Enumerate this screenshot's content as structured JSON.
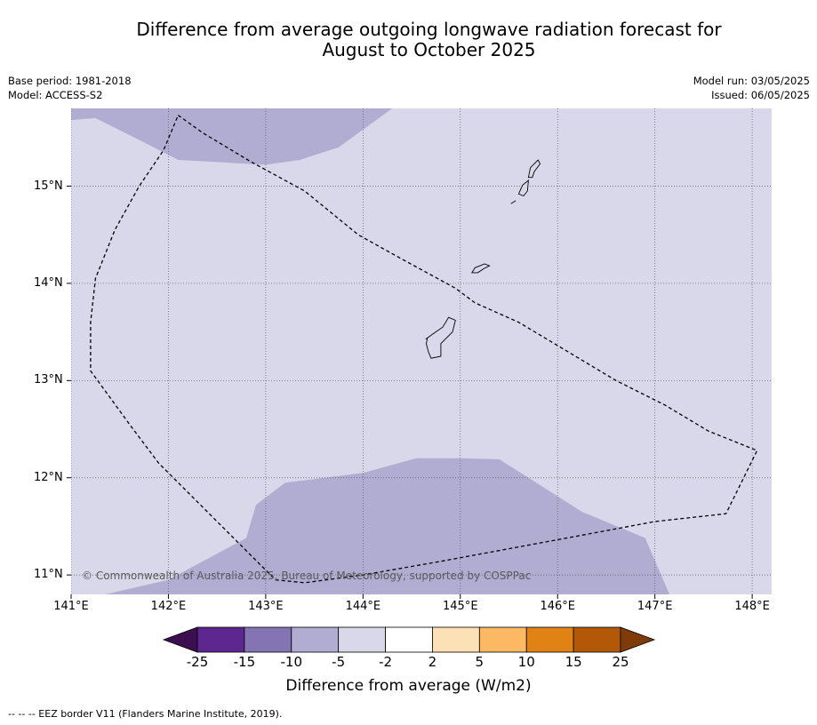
{
  "title": {
    "line1": "Difference from average outgoing longwave radiation forecast for",
    "line2": "August to October 2025"
  },
  "meta": {
    "base_period": "Base period: 1981-2018",
    "model": "Model: ACCESS-S2",
    "model_run": "Model run: 03/05/2025",
    "issued": "Issued: 06/05/2025"
  },
  "map": {
    "lon_range": [
      141.0,
      148.2
    ],
    "lat_range": [
      10.8,
      15.8
    ],
    "background_color": "#d8d8ea",
    "anomaly_color": "#b1acd2",
    "lat_labels": [
      "15°N",
      "14°N",
      "13°N",
      "12°N",
      "11°N"
    ],
    "lat_values": [
      15,
      14,
      13,
      12,
      11
    ],
    "lon_labels": [
      "141°E",
      "142°E",
      "143°E",
      "144°E",
      "145°E",
      "146°E",
      "147°E",
      "148°E"
    ],
    "lon_values": [
      141,
      142,
      143,
      144,
      145,
      146,
      147,
      148
    ],
    "gridlines": "dotted",
    "copyright": "© Commonwealth of Australia 2025, Bureau of Meteorology, supported by COSPPac",
    "anomaly_regions": [
      [
        [
          141.0,
          15.68
        ],
        [
          141.25,
          15.7
        ],
        [
          141.75,
          15.45
        ],
        [
          142.1,
          15.27
        ],
        [
          143.0,
          15.22
        ],
        [
          143.35,
          15.27
        ],
        [
          143.75,
          15.4
        ],
        [
          144.3,
          15.8
        ],
        [
          141.0,
          15.8
        ]
      ],
      [
        [
          141.35,
          10.8
        ],
        [
          142.0,
          10.95
        ],
        [
          142.8,
          11.38
        ],
        [
          142.9,
          11.72
        ],
        [
          143.2,
          11.95
        ],
        [
          144.0,
          12.05
        ],
        [
          144.55,
          12.2
        ],
        [
          145.0,
          12.2
        ],
        [
          145.4,
          12.19
        ],
        [
          146.25,
          11.65
        ],
        [
          146.9,
          11.38
        ],
        [
          147.15,
          10.8
        ]
      ]
    ],
    "eez_border": [
      [
        142.1,
        15.73
      ],
      [
        142.35,
        15.55
      ],
      [
        142.85,
        15.25
      ],
      [
        143.4,
        14.95
      ],
      [
        143.95,
        14.5
      ],
      [
        144.4,
        14.25
      ],
      [
        144.95,
        13.95
      ],
      [
        145.15,
        13.8
      ],
      [
        145.6,
        13.6
      ],
      [
        146.1,
        13.3
      ],
      [
        146.6,
        13.0
      ],
      [
        147.1,
        12.75
      ],
      [
        147.55,
        12.48
      ],
      [
        148.05,
        12.28
      ],
      [
        147.73,
        11.63
      ],
      [
        147.0,
        11.55
      ],
      [
        146.2,
        11.4
      ],
      [
        145.5,
        11.27
      ],
      [
        144.8,
        11.14
      ],
      [
        144.0,
        11.0
      ],
      [
        143.4,
        10.92
      ],
      [
        143.1,
        10.95
      ],
      [
        142.5,
        11.55
      ],
      [
        141.9,
        12.15
      ],
      [
        141.6,
        12.55
      ],
      [
        141.2,
        13.1
      ],
      [
        141.2,
        13.6
      ],
      [
        141.25,
        14.05
      ],
      [
        141.45,
        14.55
      ],
      [
        141.7,
        15.0
      ],
      [
        141.95,
        15.37
      ],
      [
        142.1,
        15.73
      ]
    ],
    "islands": [
      [
        [
          144.65,
          13.43
        ],
        [
          144.72,
          13.48
        ],
        [
          144.82,
          13.55
        ],
        [
          144.88,
          13.65
        ],
        [
          144.95,
          13.62
        ],
        [
          144.92,
          13.5
        ],
        [
          144.8,
          13.38
        ],
        [
          144.8,
          13.25
        ],
        [
          144.7,
          13.23
        ],
        [
          144.67,
          13.3
        ],
        [
          144.65,
          13.38
        ],
        [
          144.66,
          13.43
        ]
      ],
      [
        [
          145.12,
          14.11
        ],
        [
          145.15,
          14.16
        ],
        [
          145.25,
          14.2
        ],
        [
          145.3,
          14.18
        ],
        [
          145.24,
          14.15
        ],
        [
          145.18,
          14.11
        ]
      ],
      [
        [
          145.6,
          14.92
        ],
        [
          145.64,
          15.01
        ],
        [
          145.7,
          15.06
        ],
        [
          145.69,
          14.95
        ],
        [
          145.65,
          14.9
        ]
      ],
      [
        [
          145.7,
          15.09
        ],
        [
          145.72,
          15.19
        ],
        [
          145.8,
          15.27
        ],
        [
          145.82,
          15.23
        ],
        [
          145.76,
          15.15
        ],
        [
          145.74,
          15.09
        ]
      ],
      [
        [
          145.52,
          14.82
        ],
        [
          145.57,
          14.85
        ]
      ]
    ]
  },
  "colorbar": {
    "title": "Difference from average (W/m2)",
    "tick_labels": [
      "-25",
      "-15",
      "-10",
      "-5",
      "-2",
      "2",
      "5",
      "10",
      "15",
      "25"
    ],
    "colors": [
      "#3b0f50",
      "#5e2790",
      "#8474b3",
      "#b1acd2",
      "#d8d8ea",
      "#ffffff",
      "#fde1b6",
      "#fdb863",
      "#e08214",
      "#b35806",
      "#7f3b08"
    ]
  },
  "footnote": "--  --  -- EEZ border V11 (Flanders Marine Institute, 2019)."
}
